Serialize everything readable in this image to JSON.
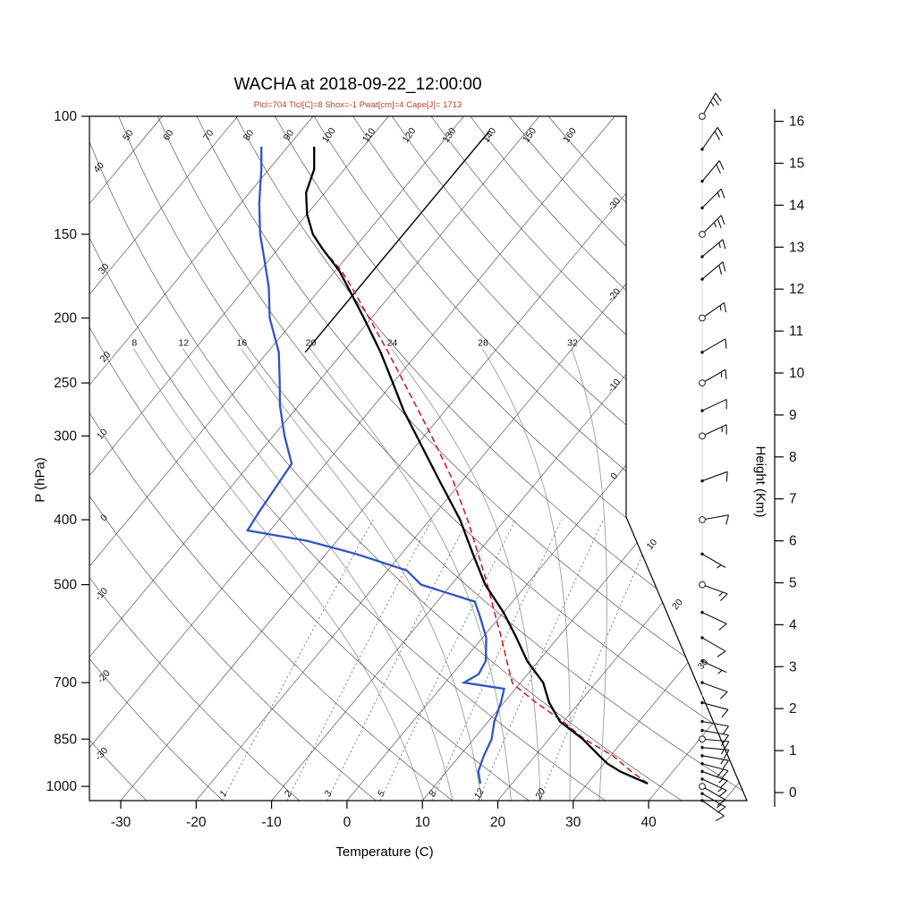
{
  "title": "WACHA at 2018-09-22_12:00:00",
  "subtitle": "Plcl=704 Tlcl[C]=8 Shox=-1 Pwat[cm]=4 Cape[J]= 1713",
  "colors": {
    "temperature": "#000000",
    "dewpoint": "#2f55c4",
    "parcel": "#cf1f1f",
    "subtitle_text": "#b0402c",
    "background_lines": "#3f3f3f",
    "moist_adiabat": "#a6a6a6",
    "mixing_ratio": "#707070"
  },
  "chart_data": {
    "type": "skewt-logp",
    "station": "WACHA",
    "datetime": "2018-09-22_12:00:00",
    "indices": {
      "Plcl": 704,
      "Tlcl_C": 8,
      "Shox": -1,
      "Pwat_cm": 4,
      "Cape_J": 1713
    },
    "axes": {
      "pressure": {
        "label": "P (hPa)",
        "scale": "log",
        "range": [
          100,
          1050
        ],
        "ticks": [
          100,
          150,
          200,
          250,
          300,
          400,
          500,
          700,
          850,
          1000
        ]
      },
      "temperature": {
        "label": "Temperature (C)",
        "skew": true,
        "ticks": [
          -30,
          -20,
          -10,
          0,
          10,
          20,
          30,
          40
        ]
      },
      "height": {
        "label": "Height (Km)",
        "unit": "km",
        "ticks": [
          0,
          1,
          2,
          3,
          4,
          5,
          6,
          7,
          8,
          9,
          10,
          11,
          12,
          13,
          14,
          15,
          16
        ]
      }
    },
    "background": {
      "isotherms": {
        "min": -110,
        "max": 50,
        "step": 10,
        "edge_labels": [
          "-30",
          "-20",
          "-10",
          "0",
          "10",
          "20",
          "30"
        ]
      },
      "dry_adiabats": {
        "min": -30,
        "max": 160,
        "step": 10,
        "left_edge_labels": [
          "40",
          "30",
          "20",
          "10",
          "0",
          "-10",
          "-20",
          "-30"
        ],
        "top_edge_labels": [
          "50",
          "60",
          "70",
          "80",
          "90",
          "100",
          "110",
          "120",
          "130",
          "140",
          "150",
          "160"
        ]
      },
      "moist_adiabats": {
        "values": [
          8,
          12,
          16,
          20,
          24,
          28,
          32
        ],
        "label_pressure": 222
      },
      "mixing_ratio_lines": {
        "values": [
          1,
          2,
          3,
          5,
          8,
          12,
          20
        ],
        "unit": "g/kg",
        "top_pressure": 400
      }
    },
    "series": {
      "temperature": [
        [
          990,
          38.0
        ],
        [
          970,
          35.5
        ],
        [
          950,
          33.0
        ],
        [
          925,
          30.5
        ],
        [
          900,
          28.5
        ],
        [
          850,
          24.5
        ],
        [
          800,
          19.5
        ],
        [
          750,
          16.0
        ],
        [
          700,
          13.0
        ],
        [
          650,
          8.5
        ],
        [
          600,
          4.5
        ],
        [
          550,
          0.0
        ],
        [
          500,
          -5.5
        ],
        [
          450,
          -10.5
        ],
        [
          400,
          -16.0
        ],
        [
          350,
          -23.0
        ],
        [
          300,
          -31.0
        ],
        [
          275,
          -35.5
        ],
        [
          250,
          -40.0
        ],
        [
          225,
          -45.0
        ],
        [
          200,
          -51.0
        ],
        [
          180,
          -56.5
        ],
        [
          170,
          -59.5
        ],
        [
          158,
          -64.0
        ],
        [
          150,
          -67.0
        ],
        [
          140,
          -70.0
        ],
        [
          130,
          -72.5
        ],
        [
          120,
          -74.0
        ],
        [
          111,
          -76.5
        ]
      ],
      "dewpoint": [
        [
          990,
          15.8
        ],
        [
          950,
          14.2
        ],
        [
          900,
          13.2
        ],
        [
          850,
          12.4
        ],
        [
          800,
          10.8
        ],
        [
          750,
          9.6
        ],
        [
          715,
          8.5
        ],
        [
          700,
          2.5
        ],
        [
          680,
          3.5
        ],
        [
          650,
          3.0
        ],
        [
          600,
          0.5
        ],
        [
          560,
          -2.5
        ],
        [
          530,
          -5.0
        ],
        [
          500,
          -14.0
        ],
        [
          476,
          -17.5
        ],
        [
          450,
          -26.0
        ],
        [
          430,
          -34.0
        ],
        [
          415,
          -43.0
        ],
        [
          390,
          -43.5
        ],
        [
          358,
          -44.0
        ],
        [
          330,
          -44.5
        ],
        [
          300,
          -48.5
        ],
        [
          270,
          -52.5
        ],
        [
          250,
          -55.0
        ],
        [
          225,
          -58.5
        ],
        [
          200,
          -63.5
        ],
        [
          180,
          -67.0
        ],
        [
          160,
          -71.5
        ],
        [
          150,
          -74.0
        ],
        [
          135,
          -77.5
        ],
        [
          120,
          -81.0
        ],
        [
          111,
          -83.5
        ]
      ],
      "parcel": [
        [
          990,
          38.0
        ],
        [
          950,
          34.5
        ],
        [
          900,
          30.3
        ],
        [
          850,
          24.7
        ],
        [
          800,
          19.9
        ],
        [
          750,
          14.3
        ],
        [
          704,
          9.2
        ],
        [
          700,
          8.9
        ],
        [
          650,
          5.8
        ],
        [
          600,
          2.5
        ],
        [
          550,
          -1.2
        ],
        [
          500,
          -5.2
        ],
        [
          450,
          -9.8
        ],
        [
          400,
          -15.0
        ],
        [
          350,
          -21.2
        ],
        [
          300,
          -29.0
        ],
        [
          250,
          -38.5
        ],
        [
          225,
          -44.0
        ],
        [
          200,
          -50.3
        ],
        [
          180,
          -56.0
        ],
        [
          170,
          -59.2
        ],
        [
          158,
          -64.0
        ]
      ],
      "isothermal_line": [
        [
          225,
          -55
        ],
        [
          105,
          -55
        ]
      ]
    },
    "wind_barbs": {
      "ring_levels": [
        100,
        150,
        200,
        250,
        300,
        400,
        500,
        850,
        1000
      ],
      "levels": [
        {
          "p": 100,
          "dir": 30,
          "spd": 25
        },
        {
          "p": 112,
          "dir": 35,
          "spd": 20
        },
        {
          "p": 125,
          "dir": 40,
          "spd": 20
        },
        {
          "p": 137,
          "dir": 45,
          "spd": 15
        },
        {
          "p": 150,
          "dir": 45,
          "spd": 25
        },
        {
          "p": 162,
          "dir": 50,
          "spd": 15
        },
        {
          "p": 175,
          "dir": 50,
          "spd": 20
        },
        {
          "p": 200,
          "dir": 55,
          "spd": 15
        },
        {
          "p": 225,
          "dir": 60,
          "spd": 10
        },
        {
          "p": 250,
          "dir": 60,
          "spd": 15
        },
        {
          "p": 275,
          "dir": 65,
          "spd": 10
        },
        {
          "p": 300,
          "dir": 65,
          "spd": 15
        },
        {
          "p": 350,
          "dir": 70,
          "spd": 10
        },
        {
          "p": 400,
          "dir": 80,
          "spd": 10
        },
        {
          "p": 450,
          "dir": 120,
          "spd": 5
        },
        {
          "p": 500,
          "dir": 110,
          "spd": 15
        },
        {
          "p": 550,
          "dir": 115,
          "spd": 10
        },
        {
          "p": 600,
          "dir": 120,
          "spd": 10
        },
        {
          "p": 650,
          "dir": 115,
          "spd": 5
        },
        {
          "p": 700,
          "dir": 110,
          "spd": 10
        },
        {
          "p": 750,
          "dir": 105,
          "spd": 10
        },
        {
          "p": 800,
          "dir": 100,
          "spd": 10
        },
        {
          "p": 825,
          "dir": 100,
          "spd": 10
        },
        {
          "p": 850,
          "dir": 95,
          "spd": 15
        },
        {
          "p": 875,
          "dir": 95,
          "spd": 15
        },
        {
          "p": 900,
          "dir": 100,
          "spd": 15
        },
        {
          "p": 925,
          "dir": 105,
          "spd": 20
        },
        {
          "p": 950,
          "dir": 110,
          "spd": 15
        },
        {
          "p": 975,
          "dir": 115,
          "spd": 15
        },
        {
          "p": 1000,
          "dir": 120,
          "spd": 10
        },
        {
          "p": 1025,
          "dir": 120,
          "spd": 15
        },
        {
          "p": 1050,
          "dir": 125,
          "spd": 10
        }
      ]
    }
  }
}
